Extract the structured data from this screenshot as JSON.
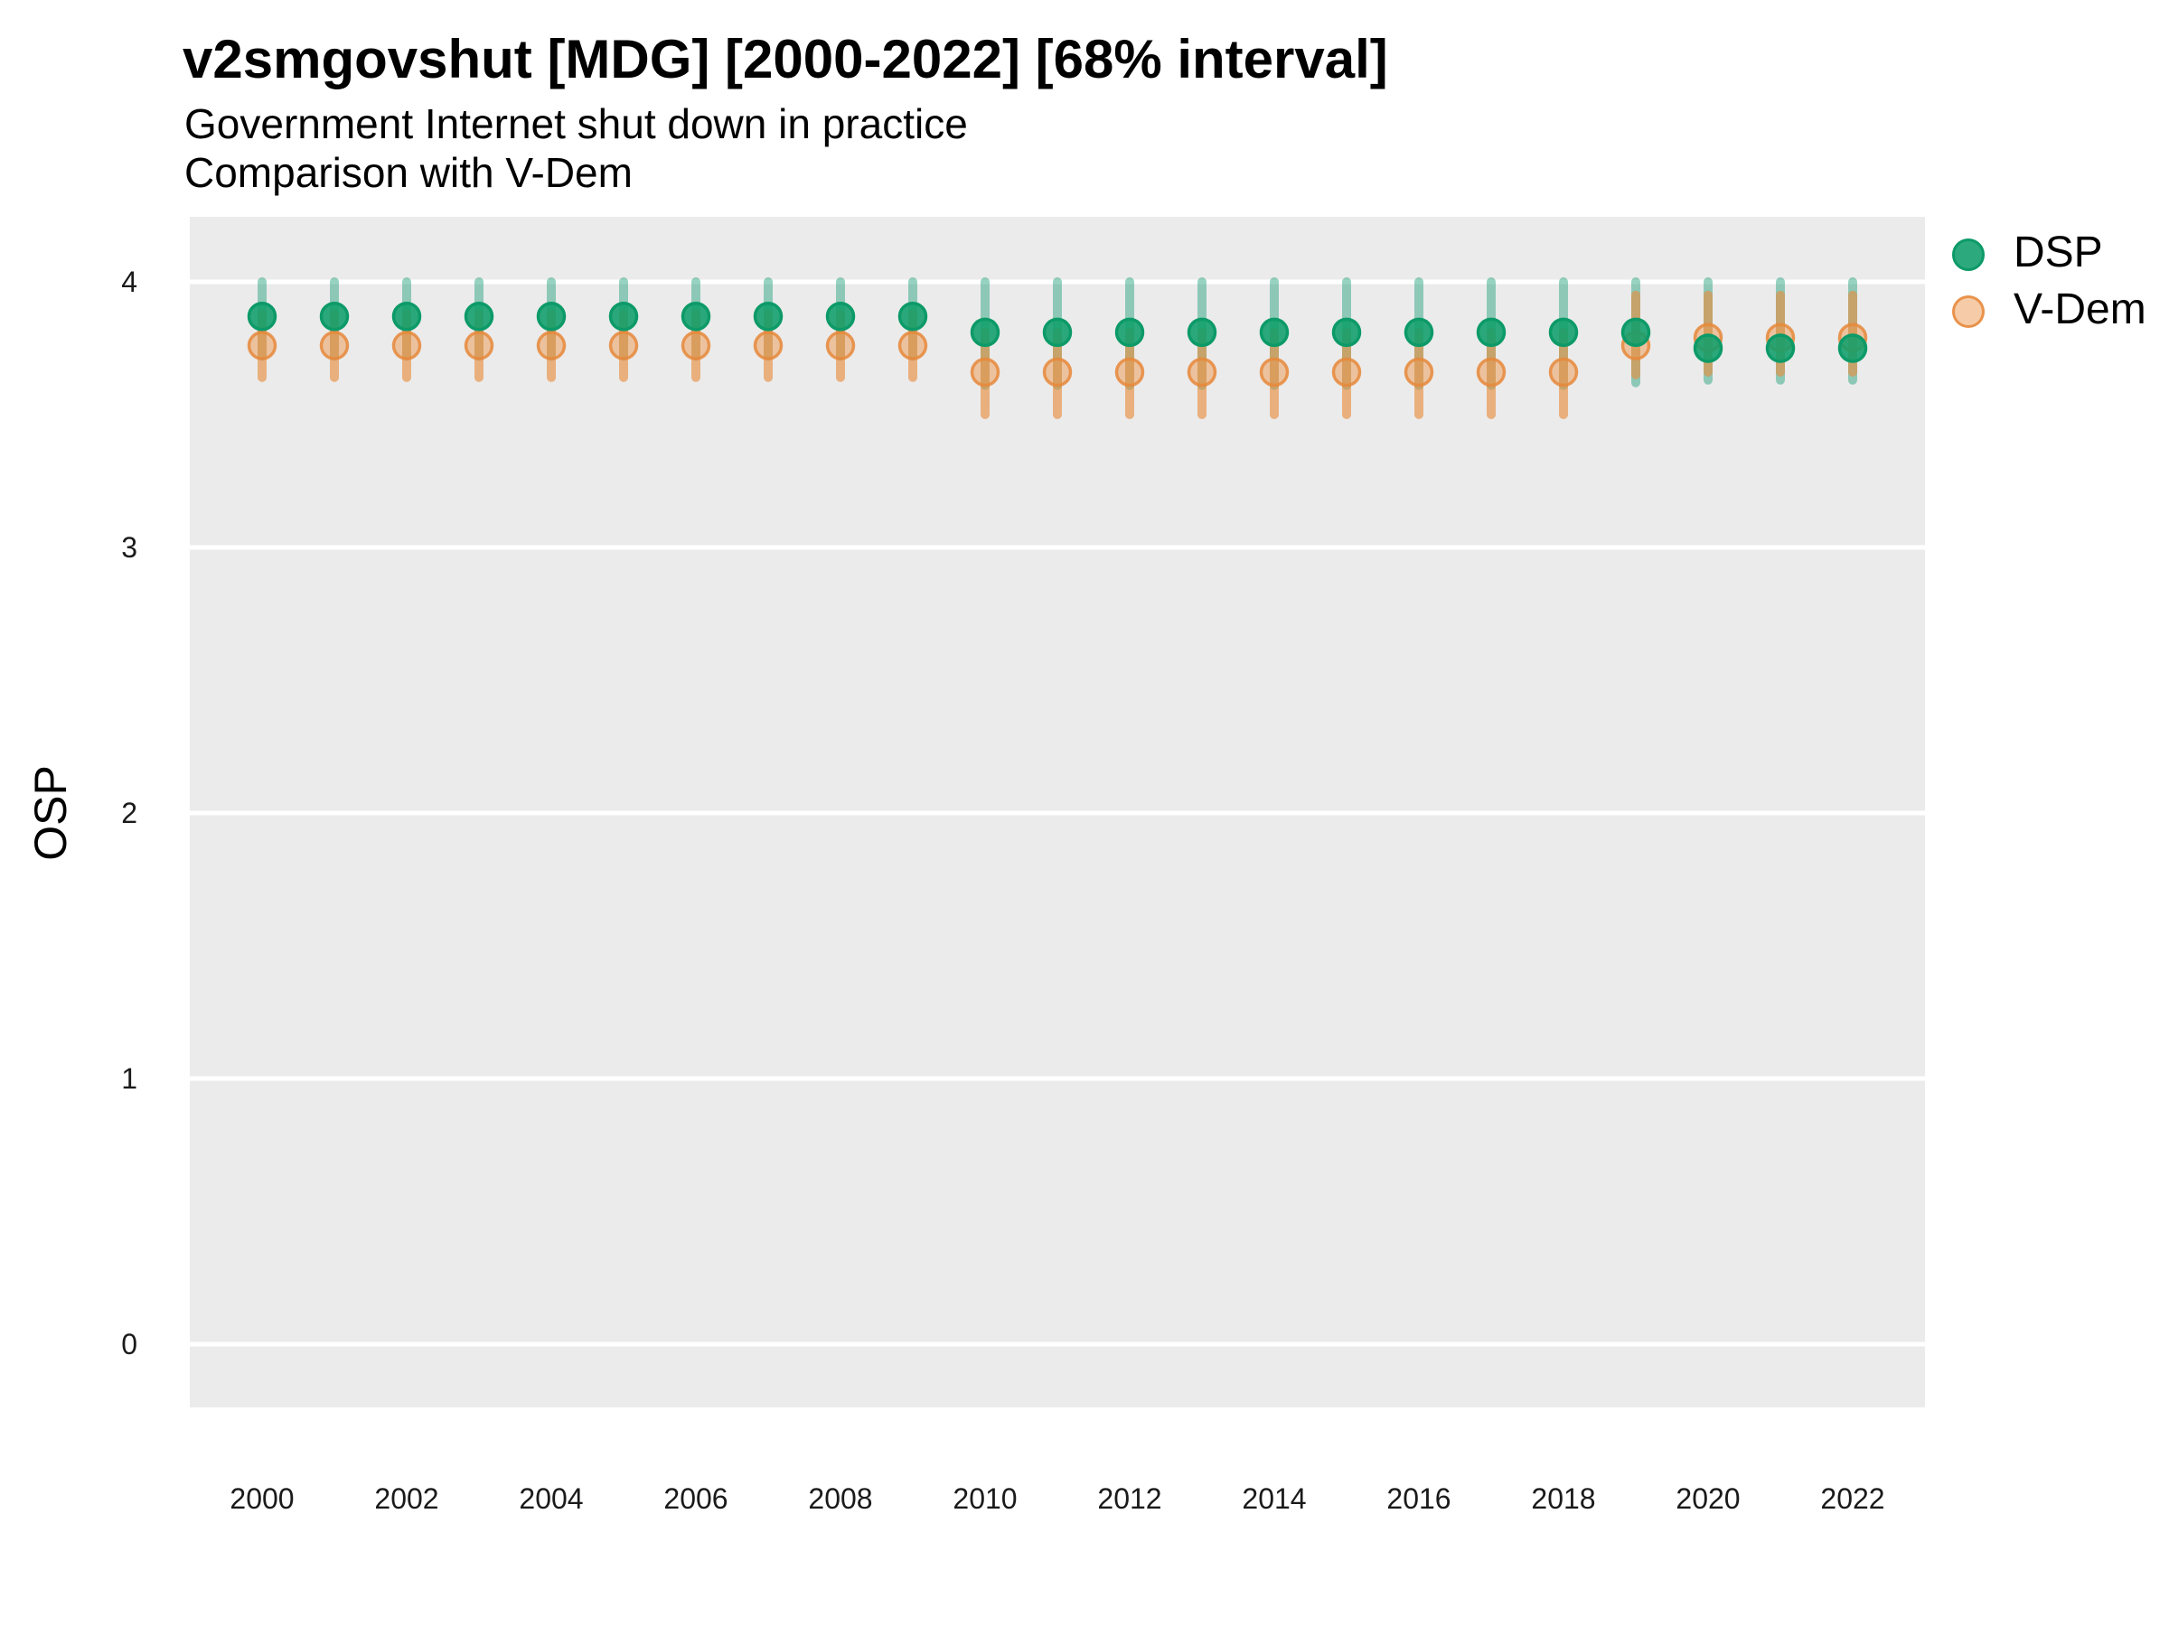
{
  "header": {
    "title": "v2smgovshut [MDG] [2000-2022] [68% interval]",
    "subtitle1": "Government Internet shut down in practice",
    "subtitle2": "Comparison with V-Dem"
  },
  "colors": {
    "panel_bg": "#ebebeb",
    "gridline": "#ffffff",
    "text": "#000000",
    "dsp_bar": "rgba(27,158,119,0.45)",
    "dsp_point_fill": "rgba(16,158,107,0.88)",
    "dsp_point_stroke": "#0c9a68",
    "vdem_bar": "rgba(233,140,60,0.62)",
    "vdem_point_fill": "rgba(238,154,82,0.5)",
    "vdem_point_stroke": "rgba(230,136,59,0.85)"
  },
  "chart_data": {
    "type": "scatter",
    "title": "v2smgovshut [MDG] [2000-2022] [68% interval]",
    "subtitle1": "Government Internet shut down in practice",
    "subtitle2": "Comparison with V-Dem",
    "interval": "68%",
    "ylabel": "OSP",
    "xlabel": "",
    "ylim": [
      -0.24,
      4.24
    ],
    "y_ticks": [
      0,
      1,
      2,
      3,
      4
    ],
    "x_ticks": [
      2000,
      2002,
      2004,
      2006,
      2008,
      2010,
      2012,
      2014,
      2016,
      2018,
      2020,
      2022
    ],
    "grid": "major-horizontal-only",
    "legend_position": "right",
    "x": [
      2000,
      2001,
      2002,
      2003,
      2004,
      2005,
      2006,
      2007,
      2008,
      2009,
      2010,
      2011,
      2012,
      2013,
      2014,
      2015,
      2016,
      2017,
      2018,
      2019,
      2020,
      2021,
      2022
    ],
    "series": [
      {
        "name": "DSP",
        "est": [
          3.87,
          3.87,
          3.87,
          3.87,
          3.87,
          3.87,
          3.87,
          3.87,
          3.87,
          3.87,
          3.81,
          3.81,
          3.81,
          3.81,
          3.81,
          3.81,
          3.81,
          3.81,
          3.81,
          3.81,
          3.75,
          3.75,
          3.75
        ],
        "lo": [
          3.72,
          3.72,
          3.72,
          3.72,
          3.72,
          3.72,
          3.72,
          3.72,
          3.72,
          3.72,
          3.61,
          3.61,
          3.61,
          3.61,
          3.61,
          3.61,
          3.61,
          3.61,
          3.61,
          3.62,
          3.63,
          3.63,
          3.63
        ],
        "hi": [
          4.0,
          4.0,
          4.0,
          4.0,
          4.0,
          4.0,
          4.0,
          4.0,
          4.0,
          4.0,
          4.0,
          4.0,
          4.0,
          4.0,
          4.0,
          4.0,
          4.0,
          4.0,
          4.0,
          4.0,
          4.0,
          4.0,
          4.0
        ]
      },
      {
        "name": "V-Dem",
        "est": [
          3.76,
          3.76,
          3.76,
          3.76,
          3.76,
          3.76,
          3.76,
          3.76,
          3.76,
          3.76,
          3.66,
          3.66,
          3.66,
          3.66,
          3.66,
          3.66,
          3.66,
          3.66,
          3.66,
          3.76,
          3.79,
          3.79,
          3.79
        ],
        "lo": [
          3.64,
          3.64,
          3.64,
          3.64,
          3.64,
          3.64,
          3.64,
          3.64,
          3.64,
          3.64,
          3.5,
          3.5,
          3.5,
          3.5,
          3.5,
          3.5,
          3.5,
          3.5,
          3.5,
          3.65,
          3.66,
          3.66,
          3.66
        ],
        "hi": [
          3.88,
          3.88,
          3.88,
          3.88,
          3.88,
          3.88,
          3.88,
          3.88,
          3.88,
          3.88,
          3.81,
          3.81,
          3.81,
          3.81,
          3.81,
          3.81,
          3.81,
          3.81,
          3.81,
          3.95,
          3.95,
          3.95,
          3.95
        ]
      }
    ]
  }
}
